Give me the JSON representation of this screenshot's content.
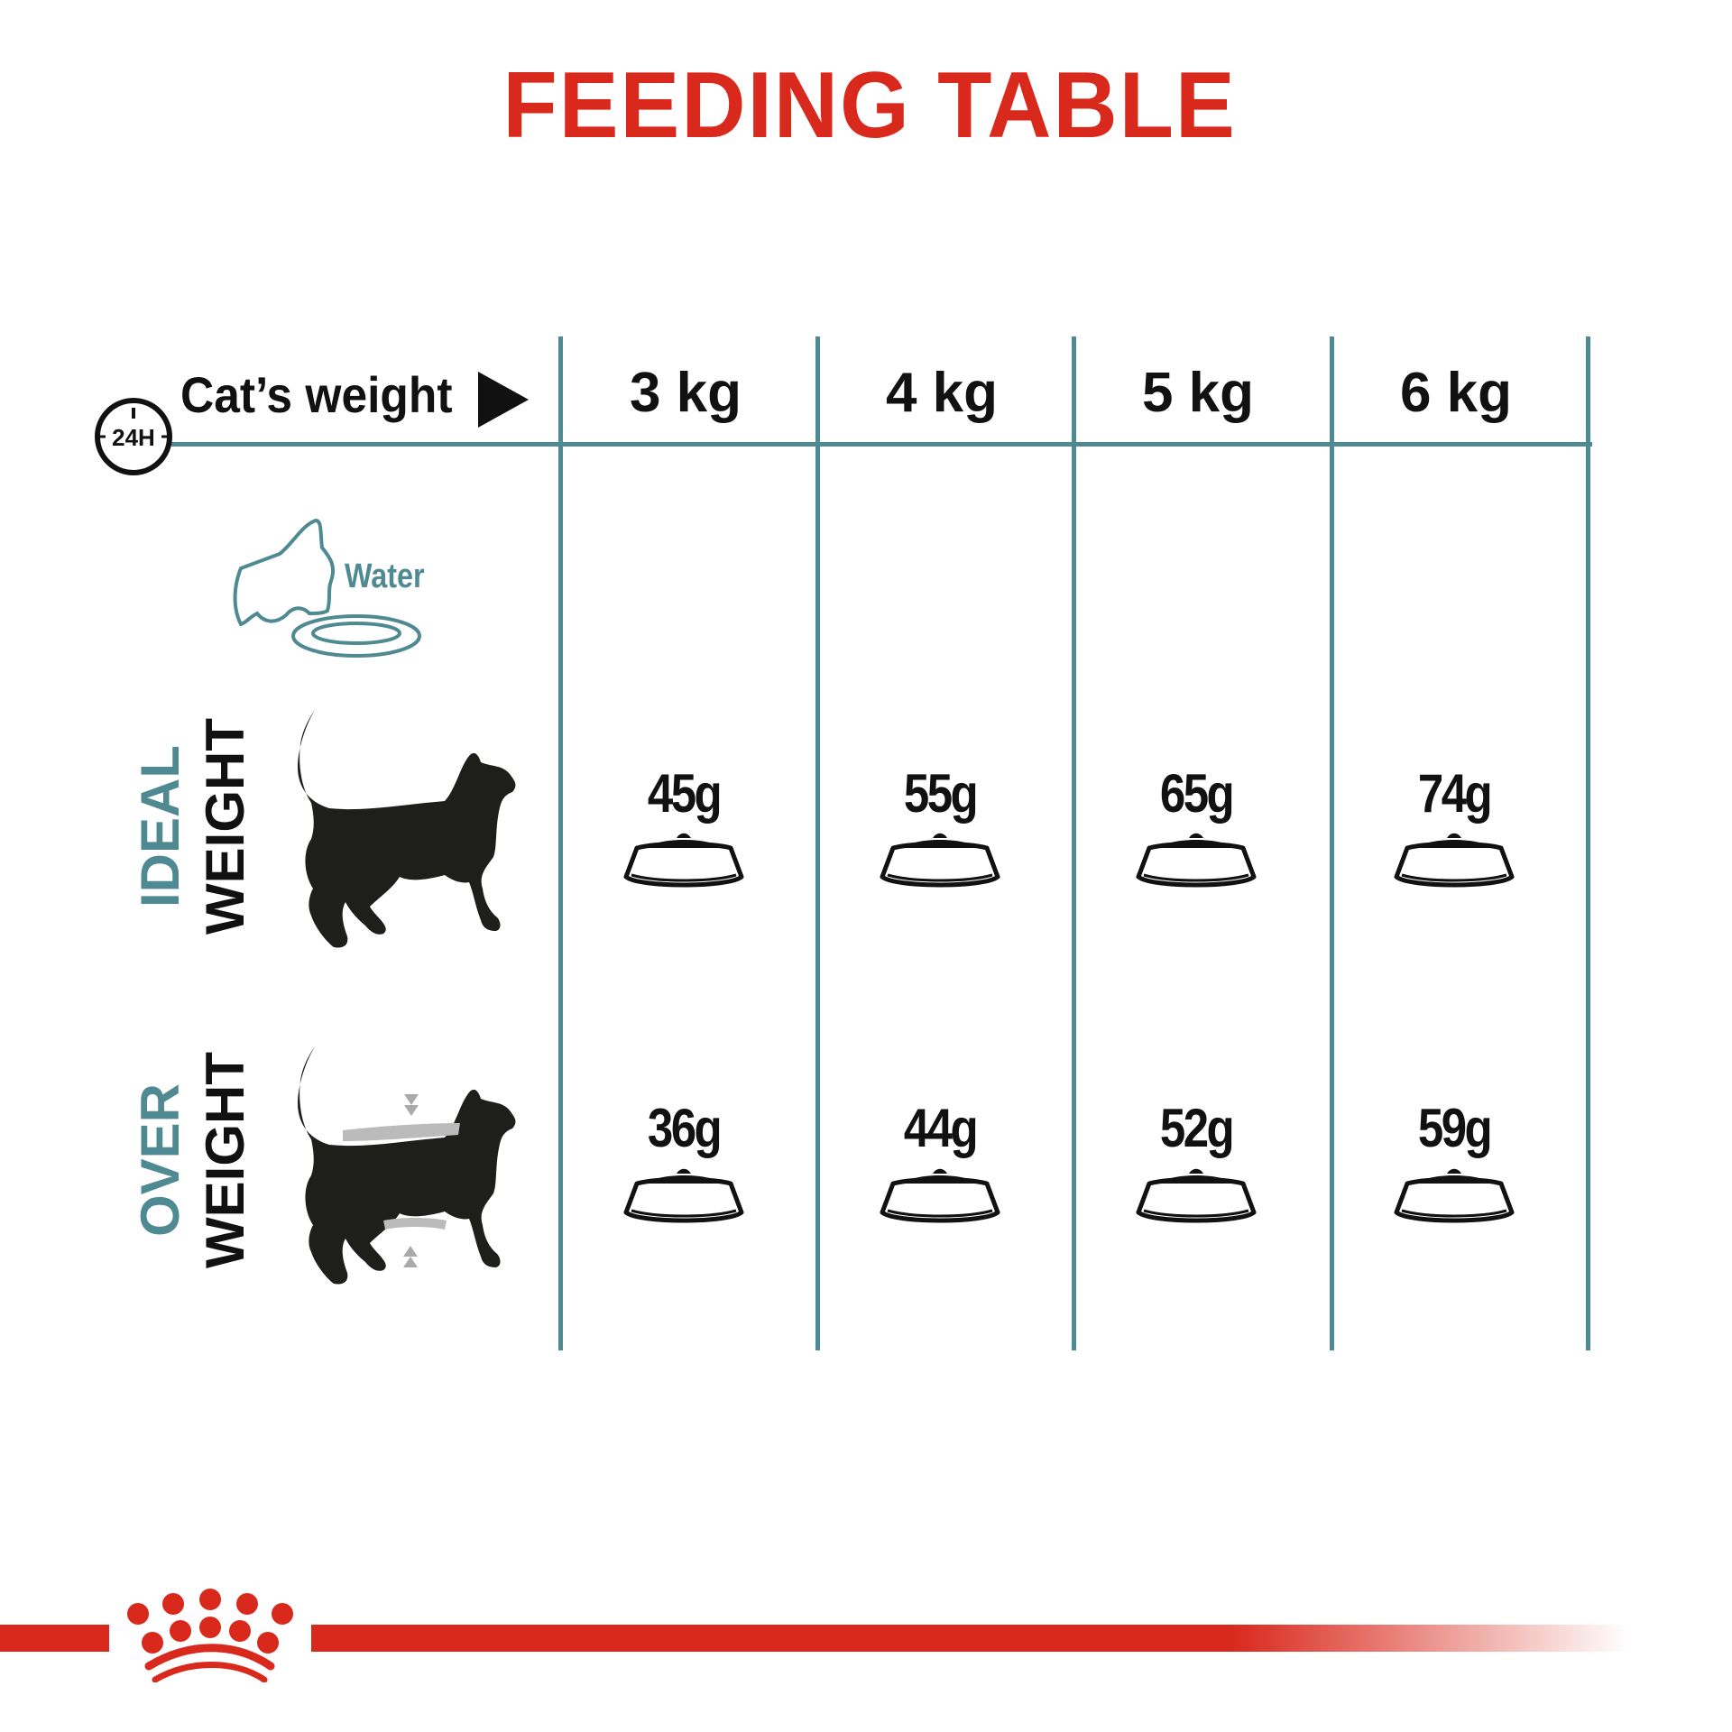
{
  "title": "FEEDING TABLE",
  "header": {
    "label": "Cat’s weight",
    "clock_icon_text": "24H",
    "columns": [
      "3 kg",
      "4 kg",
      "5 kg",
      "6 kg"
    ]
  },
  "water": {
    "label": "Water",
    "icon": "cat-drinking-water-icon"
  },
  "rows": [
    {
      "label_line1": "IDEAL",
      "label_line2": "WEIGHT",
      "icon": "cat-silhouette-icon",
      "values": [
        "45g",
        "55g",
        "65g",
        "74g"
      ]
    },
    {
      "label_line1": "OVER",
      "label_line2": "WEIGHT",
      "icon": "overweight-cat-silhouette-icon",
      "values": [
        "36g",
        "44g",
        "52g",
        "59g"
      ]
    }
  ],
  "colors": {
    "brand_red": "#d9291c",
    "teal": "#4f8a93",
    "ink": "#111111"
  },
  "logo": {
    "icon": "royal-canin-crown-logo"
  }
}
